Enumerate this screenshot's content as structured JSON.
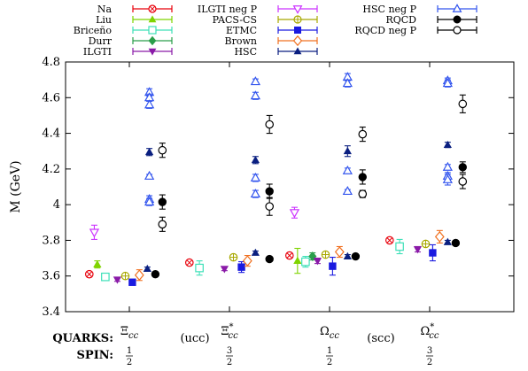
{
  "chart_data": {
    "type": "scatter",
    "ylabel": "M (GeV)",
    "ylim": [
      3.4,
      4.8
    ],
    "yticks": [
      "3.4",
      "3.6",
      "3.8",
      "4",
      "4.2",
      "4.4",
      "4.6",
      "4.8"
    ],
    "grid": false,
    "legend_position": "top",
    "categories": [
      {
        "base": "Ξ",
        "sub": "cc",
        "sup": ""
      },
      {
        "base": "Ξ",
        "sub": "cc",
        "sup": "*"
      },
      {
        "base": "Ω",
        "sub": "cc",
        "sup": ""
      },
      {
        "base": "Ω",
        "sub": "cc",
        "sup": "*"
      }
    ],
    "quarks_label": "QUARKS:",
    "quarks": [
      "(ucc)",
      "(scc)"
    ],
    "spin_label": "SPIN:",
    "spins": [
      {
        "num": "1",
        "den": "2"
      },
      {
        "num": "3",
        "den": "2"
      },
      {
        "num": "1",
        "den": "2"
      },
      {
        "num": "3",
        "den": "2"
      }
    ],
    "series": [
      {
        "name": "Na",
        "color": "#e8000b",
        "marker": "circle-x",
        "points": [
          {
            "c": 0,
            "off": -0.4,
            "y": 3.61,
            "err": 0.01
          },
          {
            "c": 1,
            "off": -0.4,
            "y": 3.675,
            "err": 0.008
          },
          {
            "c": 2,
            "off": -0.4,
            "y": 3.715,
            "err": 0.008
          },
          {
            "c": 3,
            "off": -0.4,
            "y": 3.8,
            "err": 0.01
          }
        ]
      },
      {
        "name": "Liu",
        "color": "#7fd400",
        "marker": "triangle-up",
        "points": [
          {
            "c": 0,
            "off": -0.32,
            "y": 3.665,
            "err": 0.02
          },
          {
            "c": 2,
            "off": -0.32,
            "y": 3.685,
            "err": 0.07
          }
        ]
      },
      {
        "name": "Briceño",
        "color": "#3de0b8",
        "marker": "square-open",
        "points": [
          {
            "c": 0,
            "off": -0.24,
            "y": 3.595,
            "err": 0.02
          },
          {
            "c": 1,
            "off": -0.3,
            "y": 3.645,
            "err": 0.04
          },
          {
            "c": 2,
            "off": -0.24,
            "y": 3.68,
            "err": 0.03
          },
          {
            "c": 3,
            "off": -0.3,
            "y": 3.765,
            "err": 0.04
          }
        ]
      },
      {
        "name": "Durr",
        "color": "#2a9e4a",
        "marker": "diamond",
        "points": [
          {
            "c": 2,
            "off": -0.17,
            "y": 3.71,
            "err": 0.02
          }
        ]
      },
      {
        "name": "ILGTI",
        "color": "#8a1aa8",
        "marker": "triangle-down",
        "points": [
          {
            "c": 0,
            "off": -0.12,
            "y": 3.58,
            "err": 0.01
          },
          {
            "c": 1,
            "off": -0.05,
            "y": 3.64,
            "err": 0.01
          },
          {
            "c": 2,
            "off": -0.12,
            "y": 3.685,
            "err": 0.015
          },
          {
            "c": 3,
            "off": -0.12,
            "y": 3.75,
            "err": 0.015
          }
        ]
      },
      {
        "name": "ILGTI neg P",
        "color": "#cc33ff",
        "marker": "triangle-down-open",
        "points": [
          {
            "c": 0,
            "off": -0.35,
            "y": 3.845,
            "err": 0.04
          },
          {
            "c": 2,
            "off": -0.35,
            "y": 3.955,
            "err": 0.03
          }
        ]
      },
      {
        "name": "PACS-CS",
        "color": "#a8a800",
        "marker": "circle-plus",
        "points": [
          {
            "c": 0,
            "off": -0.04,
            "y": 3.6,
            "err": 0.01
          },
          {
            "c": 1,
            "off": 0.04,
            "y": 3.705,
            "err": 0.01
          },
          {
            "c": 2,
            "off": -0.04,
            "y": 3.72,
            "err": 0.01
          },
          {
            "c": 3,
            "off": -0.04,
            "y": 3.78,
            "err": 0.01
          }
        ]
      },
      {
        "name": "ETMC",
        "color": "#1a1ae0",
        "marker": "square",
        "points": [
          {
            "c": 0,
            "off": 0.03,
            "y": 3.565,
            "err": 0.015
          },
          {
            "c": 1,
            "off": 0.12,
            "y": 3.65,
            "err": 0.03
          },
          {
            "c": 2,
            "off": 0.03,
            "y": 3.655,
            "err": 0.05
          },
          {
            "c": 3,
            "off": 0.03,
            "y": 3.73,
            "err": 0.045
          }
        ]
      },
      {
        "name": "Brown",
        "color": "#f07020",
        "marker": "diamond-open",
        "points": [
          {
            "c": 0,
            "off": 0.1,
            "y": 3.605,
            "err": 0.03
          },
          {
            "c": 1,
            "off": 0.18,
            "y": 3.685,
            "err": 0.03
          },
          {
            "c": 2,
            "off": 0.1,
            "y": 3.735,
            "err": 0.03
          },
          {
            "c": 3,
            "off": 0.1,
            "y": 3.82,
            "err": 0.035
          }
        ]
      },
      {
        "name": "HSC",
        "color": "#0a1f80",
        "marker": "triangle-up",
        "points": [
          {
            "c": 0,
            "off": 0.18,
            "y": 3.64,
            "err": 0.01
          },
          {
            "c": 0,
            "off": 0.2,
            "y": 4.295,
            "err": 0.02
          },
          {
            "c": 1,
            "off": 0.26,
            "y": 3.73,
            "err": 0.01
          },
          {
            "c": 1,
            "off": 0.26,
            "y": 4.25,
            "err": 0.02
          },
          {
            "c": 2,
            "off": 0.18,
            "y": 3.71,
            "err": 0.01
          },
          {
            "c": 2,
            "off": 0.18,
            "y": 4.3,
            "err": 0.03
          },
          {
            "c": 3,
            "off": 0.18,
            "y": 3.79,
            "err": 0.01
          },
          {
            "c": 3,
            "off": 0.18,
            "y": 4.335,
            "err": 0.015
          }
        ]
      },
      {
        "name": "HSC neg P",
        "color": "#3355ee",
        "marker": "triangle-up-open",
        "points": [
          {
            "c": 0,
            "off": 0.2,
            "y": 4.63,
            "err": 0.02
          },
          {
            "c": 0,
            "off": 0.2,
            "y": 4.6,
            "err": 0.02
          },
          {
            "c": 0,
            "off": 0.2,
            "y": 4.56,
            "err": 0.02
          },
          {
            "c": 0,
            "off": 0.2,
            "y": 4.16,
            "err": 0.01
          },
          {
            "c": 0,
            "off": 0.2,
            "y": 4.03,
            "err": 0.02
          },
          {
            "c": 0,
            "off": 0.2,
            "y": 4.015,
            "err": 0.02
          },
          {
            "c": 1,
            "off": 0.26,
            "y": 4.69,
            "err": 0.015
          },
          {
            "c": 1,
            "off": 0.26,
            "y": 4.61,
            "err": 0.02
          },
          {
            "c": 1,
            "off": 0.26,
            "y": 4.15,
            "err": 0.02
          },
          {
            "c": 1,
            "off": 0.26,
            "y": 4.06,
            "err": 0.02
          },
          {
            "c": 2,
            "off": 0.18,
            "y": 4.715,
            "err": 0.02
          },
          {
            "c": 2,
            "off": 0.18,
            "y": 4.68,
            "err": 0.02
          },
          {
            "c": 2,
            "off": 0.18,
            "y": 4.19,
            "err": 0.015
          },
          {
            "c": 2,
            "off": 0.18,
            "y": 4.075,
            "err": 0.01
          },
          {
            "c": 3,
            "off": 0.18,
            "y": 4.695,
            "err": 0.015
          },
          {
            "c": 3,
            "off": 0.18,
            "y": 4.68,
            "err": 0.02
          },
          {
            "c": 3,
            "off": 0.18,
            "y": 4.21,
            "err": 0.015
          },
          {
            "c": 3,
            "off": 0.18,
            "y": 4.16,
            "err": 0.02
          },
          {
            "c": 3,
            "off": 0.18,
            "y": 4.14,
            "err": 0.03
          }
        ]
      },
      {
        "name": "RQCD",
        "color": "#000000",
        "marker": "circle",
        "points": [
          {
            "c": 0,
            "off": 0.26,
            "y": 3.61,
            "err": 0.01
          },
          {
            "c": 0,
            "off": 0.33,
            "y": 4.015,
            "err": 0.04
          },
          {
            "c": 1,
            "off": 0.4,
            "y": 3.695,
            "err": 0.01
          },
          {
            "c": 1,
            "off": 0.4,
            "y": 4.075,
            "err": 0.04
          },
          {
            "c": 2,
            "off": 0.26,
            "y": 3.71,
            "err": 0.01
          },
          {
            "c": 2,
            "off": 0.33,
            "y": 4.155,
            "err": 0.04
          },
          {
            "c": 3,
            "off": 0.26,
            "y": 3.785,
            "err": 0.01
          },
          {
            "c": 3,
            "off": 0.33,
            "y": 4.21,
            "err": 0.03
          }
        ]
      },
      {
        "name": "RQCD neg P",
        "color": "#000000",
        "marker": "circle-open",
        "points": [
          {
            "c": 0,
            "off": 0.33,
            "y": 4.305,
            "err": 0.04
          },
          {
            "c": 0,
            "off": 0.33,
            "y": 3.89,
            "err": 0.04
          },
          {
            "c": 1,
            "off": 0.4,
            "y": 4.45,
            "err": 0.05
          },
          {
            "c": 1,
            "off": 0.4,
            "y": 3.99,
            "err": 0.05
          },
          {
            "c": 2,
            "off": 0.33,
            "y": 4.395,
            "err": 0.04
          },
          {
            "c": 2,
            "off": 0.33,
            "y": 4.06,
            "err": 0.02
          },
          {
            "c": 3,
            "off": 0.33,
            "y": 4.565,
            "err": 0.05
          },
          {
            "c": 3,
            "off": 0.33,
            "y": 4.13,
            "err": 0.04
          }
        ]
      }
    ]
  }
}
